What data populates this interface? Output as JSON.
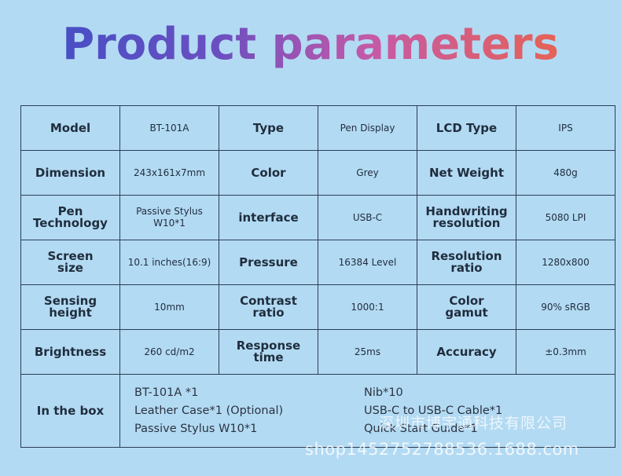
{
  "title": "Product parameters",
  "rows": [
    [
      {
        "l": "Model",
        "v": "BT-101A"
      },
      {
        "l": "Type",
        "v": "Pen Display"
      },
      {
        "l": "LCD Type",
        "v": "IPS"
      }
    ],
    [
      {
        "l": "Dimension",
        "v": "243x161x7mm"
      },
      {
        "l": "Color",
        "v": "Grey"
      },
      {
        "l": "Net Weight",
        "v": "480g"
      }
    ],
    [
      {
        "l": "Pen\nTechnology",
        "v": "Passive Stylus\nW10*1"
      },
      {
        "l": "interface",
        "v": "USB-C"
      },
      {
        "l": "Handwriting\nresolution",
        "v": "5080 LPI"
      }
    ],
    [
      {
        "l": "Screen\nsize",
        "v": "10.1 inches(16:9)"
      },
      {
        "l": "Pressure",
        "v": "16384 Level"
      },
      {
        "l": "Resolution\nratio",
        "v": "1280x800"
      }
    ],
    [
      {
        "l": "Sensing\nheight",
        "v": "10mm"
      },
      {
        "l": "Contrast\nratio",
        "v": "1000:1"
      },
      {
        "l": "Color\ngamut",
        "v": "90% sRGB"
      }
    ],
    [
      {
        "l": "Brightness",
        "v": "260 cd/m2"
      },
      {
        "l": "Response\ntime",
        "v": "25ms"
      },
      {
        "l": "Accuracy",
        "v": "±0.3mm"
      }
    ]
  ],
  "in_the_box": {
    "label": "In the box",
    "items": [
      "BT-101A *1",
      "Nib*10",
      "Leather Case*1 (Optional)",
      "USB-C to USB-C Cable*1",
      "Passive Stylus W10*1",
      "Quick Start Guide*1"
    ]
  },
  "watermark": {
    "company": "深圳市博宇通科技有限公司",
    "shop": "shop1452752788536.1688.com"
  }
}
